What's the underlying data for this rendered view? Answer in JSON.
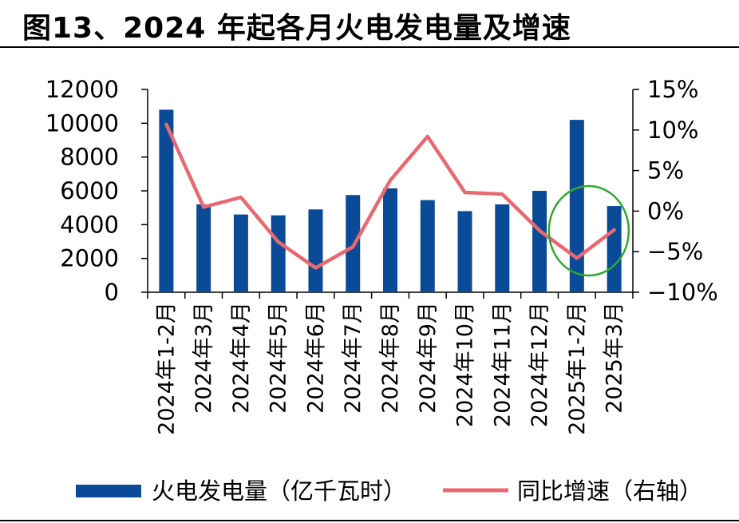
{
  "title": "图13、2024 年起各月火电发电量及增速",
  "chart_data": {
    "type": "bar",
    "categories": [
      "2024年1-2月",
      "2024年3月",
      "2024年4月",
      "2024年5月",
      "2024年6月",
      "2024年7月",
      "2024年8月",
      "2024年9月",
      "2024年10月",
      "2024年11月",
      "2024年12月",
      "2025年1-2月",
      "2025年3月"
    ],
    "series": [
      {
        "name": "火电发电量（亿千瓦时）",
        "type": "bar",
        "axis": "left",
        "color": "#0a4a96",
        "values": [
          10800,
          5200,
          4600,
          4550,
          4900,
          5750,
          6150,
          5450,
          4800,
          5200,
          6000,
          10200,
          5100
        ]
      },
      {
        "name": "同比增速（右轴）",
        "type": "line",
        "axis": "right",
        "color": "#e8696f",
        "values": [
          10.7,
          0.5,
          1.7,
          -3.8,
          -7.0,
          -4.4,
          3.8,
          9.2,
          2.3,
          2.1,
          -2.4,
          -5.8,
          -2.3
        ]
      }
    ],
    "y_left": {
      "ticks": [
        "12000",
        "10000",
        "8000",
        "6000",
        "4000",
        "2000",
        "0"
      ],
      "ylim": [
        0,
        12000
      ]
    },
    "y_right": {
      "ticks": [
        "15%",
        "10%",
        "5%",
        "0%",
        "−5%",
        "−10%"
      ],
      "ylim": [
        -10,
        15
      ]
    },
    "annotation": {
      "type": "circle",
      "color": "#2eaa2e",
      "highlight": "2025年1-2月"
    },
    "legend_position": "bottom"
  }
}
